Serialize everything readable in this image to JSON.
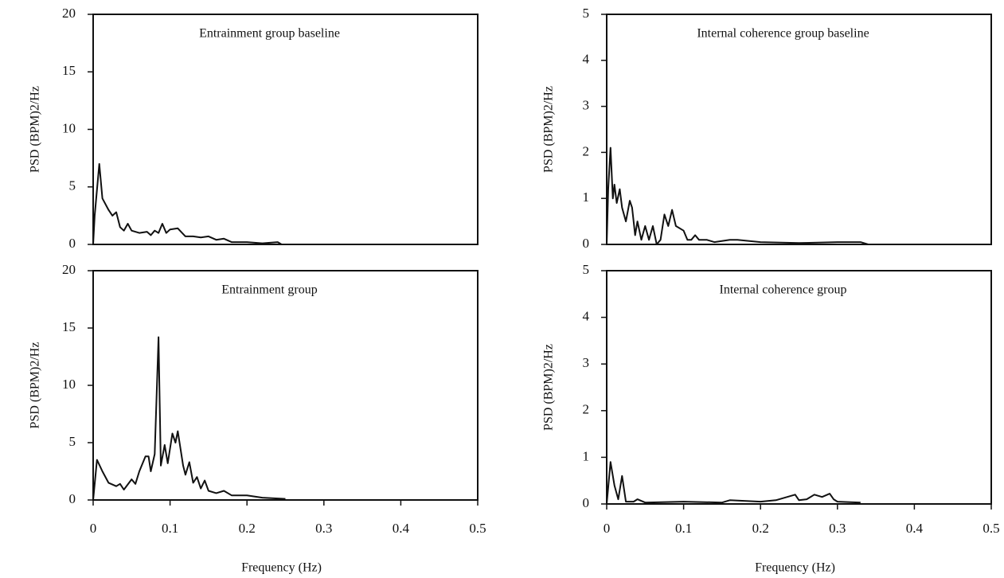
{
  "chart_data": [
    {
      "type": "line",
      "title": "Entrainment group baseline",
      "ylabel": "PSD (BPM)2/Hz",
      "color": "#111111",
      "xlim": [
        0,
        0.5
      ],
      "ylim": [
        0,
        20
      ],
      "yticks": [
        0,
        5,
        10,
        15,
        20
      ],
      "x": [
        0,
        0.002,
        0.008,
        0.012,
        0.02,
        0.025,
        0.03,
        0.035,
        0.04,
        0.045,
        0.05,
        0.06,
        0.07,
        0.075,
        0.08,
        0.085,
        0.09,
        0.095,
        0.1,
        0.11,
        0.12,
        0.13,
        0.14,
        0.15,
        0.16,
        0.17,
        0.18,
        0.2,
        0.22,
        0.24,
        0.245
      ],
      "values": [
        0,
        2.5,
        7,
        4,
        3,
        2.5,
        2.8,
        1.5,
        1.2,
        1.8,
        1.2,
        1,
        1.1,
        0.8,
        1.2,
        1,
        1.8,
        1,
        1.3,
        1.4,
        0.7,
        0.7,
        0.6,
        0.7,
        0.4,
        0.5,
        0.2,
        0.2,
        0.1,
        0.2,
        0
      ]
    },
    {
      "type": "line",
      "title": "Internal coherence group baseline",
      "ylabel": "PSD (BPM)2/Hz",
      "color": "#111111",
      "xlim": [
        0,
        0.5
      ],
      "ylim": [
        0,
        5
      ],
      "yticks": [
        0,
        1,
        2,
        3,
        4,
        5
      ],
      "x": [
        0,
        0.002,
        0.005,
        0.008,
        0.01,
        0.013,
        0.017,
        0.02,
        0.025,
        0.03,
        0.033,
        0.037,
        0.04,
        0.045,
        0.05,
        0.055,
        0.06,
        0.065,
        0.07,
        0.075,
        0.08,
        0.085,
        0.09,
        0.1,
        0.105,
        0.11,
        0.115,
        0.12,
        0.13,
        0.14,
        0.16,
        0.17,
        0.2,
        0.25,
        0.3,
        0.33,
        0.34
      ],
      "values": [
        0,
        1.2,
        2.1,
        1,
        1.3,
        0.9,
        1.2,
        0.8,
        0.5,
        0.95,
        0.8,
        0.2,
        0.5,
        0.1,
        0.4,
        0.1,
        0.4,
        0,
        0.1,
        0.65,
        0.4,
        0.75,
        0.4,
        0.3,
        0.1,
        0.1,
        0.2,
        0.1,
        0.1,
        0.05,
        0.1,
        0.1,
        0.05,
        0.03,
        0.05,
        0.05,
        0
      ]
    },
    {
      "type": "line",
      "title": "Entrainment group",
      "ylabel": "PSD (BPM)2/Hz",
      "xlabel": "Frequency (Hz)",
      "color": "#111111",
      "xlim": [
        0,
        0.5
      ],
      "xticks": [
        0,
        0.1,
        0.2,
        0.3,
        0.4,
        0.5
      ],
      "ylim": [
        0,
        20
      ],
      "yticks": [
        0,
        5,
        10,
        15,
        20
      ],
      "x": [
        0,
        0.005,
        0.012,
        0.02,
        0.03,
        0.035,
        0.04,
        0.05,
        0.055,
        0.06,
        0.068,
        0.072,
        0.075,
        0.08,
        0.085,
        0.088,
        0.093,
        0.097,
        0.103,
        0.107,
        0.11,
        0.117,
        0.12,
        0.125,
        0.13,
        0.135,
        0.14,
        0.145,
        0.15,
        0.16,
        0.17,
        0.18,
        0.2,
        0.22,
        0.25
      ],
      "values": [
        0,
        3.5,
        2.5,
        1.5,
        1.2,
        1.4,
        0.9,
        1.8,
        1.4,
        2.5,
        3.8,
        3.8,
        2.5,
        4,
        14.2,
        3,
        4.8,
        3.2,
        5.8,
        5,
        6,
        3,
        2.2,
        3.3,
        1.5,
        2,
        1,
        1.7,
        0.8,
        0.6,
        0.8,
        0.4,
        0.4,
        0.2,
        0.1
      ]
    },
    {
      "type": "line",
      "title": "Internal coherence group",
      "ylabel": "PSD (BPM)2/Hz",
      "xlabel": "Frequency (Hz)",
      "color": "#111111",
      "xlim": [
        0,
        0.5
      ],
      "xticks": [
        0,
        0.1,
        0.2,
        0.3,
        0.4,
        0.5
      ],
      "ylim": [
        0,
        5
      ],
      "yticks": [
        0,
        1,
        2,
        3,
        4,
        5
      ],
      "x": [
        0,
        0.005,
        0.01,
        0.015,
        0.02,
        0.025,
        0.035,
        0.04,
        0.05,
        0.1,
        0.15,
        0.16,
        0.2,
        0.22,
        0.245,
        0.25,
        0.26,
        0.27,
        0.28,
        0.29,
        0.295,
        0.3,
        0.33
      ],
      "values": [
        0,
        0.9,
        0.4,
        0.1,
        0.6,
        0.05,
        0.05,
        0.1,
        0.03,
        0.05,
        0.03,
        0.08,
        0.05,
        0.08,
        0.2,
        0.08,
        0.1,
        0.2,
        0.15,
        0.22,
        0.1,
        0.05,
        0.03
      ]
    }
  ]
}
